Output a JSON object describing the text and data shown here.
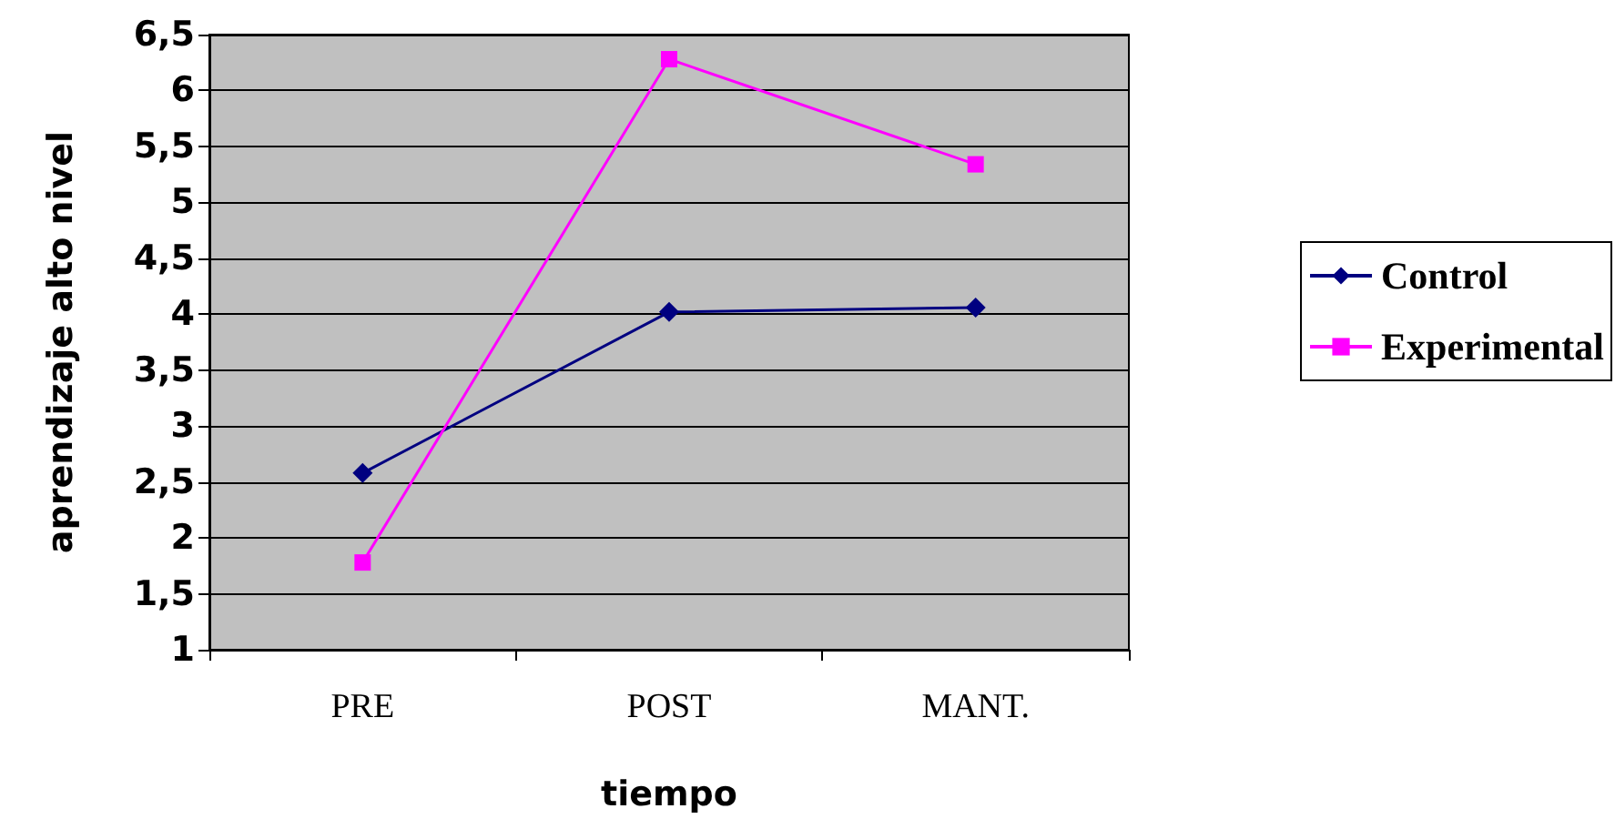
{
  "chart_data": {
    "type": "line",
    "xlabel": "tiempo",
    "ylabel": "aprendizaje alto nivel",
    "categories": [
      "PRE",
      "POST",
      "MANT."
    ],
    "series": [
      {
        "name": "Control",
        "color": "#000080",
        "marker": "diamond",
        "values": [
          2.58,
          4.02,
          4.06
        ]
      },
      {
        "name": "Experimental",
        "color": "#ff00ff",
        "marker": "square",
        "values": [
          1.78,
          6.28,
          5.34
        ]
      }
    ],
    "ylim": [
      1,
      6.5
    ],
    "yticks": [
      1,
      {
        "value": 1.5,
        "label": "1,5"
      },
      2,
      {
        "value": 2.5,
        "label": "2,5"
      },
      3,
      {
        "value": 3.5,
        "label": "3,5"
      },
      4,
      {
        "value": 4.5,
        "label": "4,5"
      },
      5,
      {
        "value": 5.5,
        "label": "5,5"
      },
      6,
      {
        "value": 6.5,
        "label": "6,5"
      }
    ],
    "grid": "y",
    "legend": "right",
    "line_style": "solid"
  }
}
